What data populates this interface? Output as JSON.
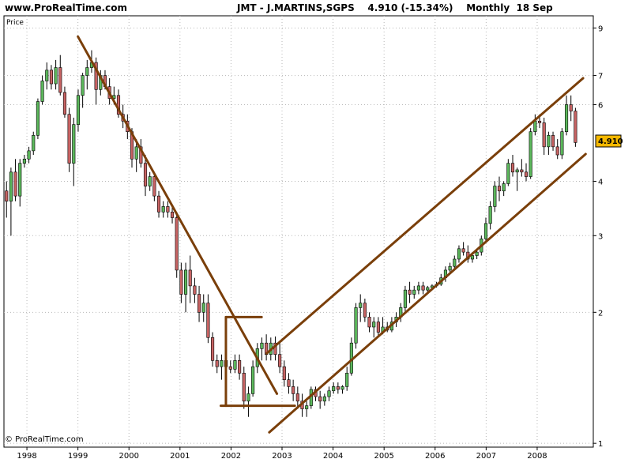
{
  "header": {
    "site": "www.ProRealTime.com",
    "title": "JMT - J.MARTINS,SGPS    4.910 (-15.34%)    Monthly  18 Sep"
  },
  "copyright": "© ProRealTime.com",
  "chart_data": {
    "type": "candlestick",
    "price_label": "Price",
    "last_price_badge": "4.910",
    "scale": "log",
    "ylim": [
      0.98,
      9.6
    ],
    "y_ticks": [
      {
        "value": 1,
        "label": "1"
      },
      {
        "value": 2,
        "label": "2"
      },
      {
        "value": 3,
        "label": "3"
      },
      {
        "value": 4,
        "label": "4"
      },
      {
        "value": 6,
        "label": "6"
      },
      {
        "value": 7,
        "label": "7"
      },
      {
        "value": 9,
        "label": "9"
      }
    ],
    "x_ticks": [
      "1998",
      "1999",
      "2000",
      "2001",
      "2002",
      "2003",
      "2004",
      "2005",
      "2006",
      "2007",
      "2008"
    ],
    "x_start_year": 1997.55,
    "x_end_year": 2009.1,
    "grid": true,
    "colors": {
      "up": "#5cb85c",
      "down": "#c86464",
      "trend": "#7a3f0a",
      "badge": "#f5b800"
    },
    "candles": [
      [
        3.8,
        4.0,
        3.3,
        3.6
      ],
      [
        3.6,
        4.3,
        3.0,
        4.2
      ],
      [
        4.2,
        4.5,
        3.6,
        3.7
      ],
      [
        3.7,
        4.5,
        3.5,
        4.4
      ],
      [
        4.4,
        4.6,
        4.3,
        4.5
      ],
      [
        4.5,
        4.8,
        4.4,
        4.7
      ],
      [
        4.7,
        5.2,
        4.6,
        5.1
      ],
      [
        5.1,
        6.2,
        5.0,
        6.1
      ],
      [
        6.1,
        7.0,
        6.0,
        6.8
      ],
      [
        6.8,
        7.5,
        6.5,
        7.2
      ],
      [
        7.2,
        7.4,
        6.5,
        6.7
      ],
      [
        6.7,
        7.6,
        6.5,
        7.3
      ],
      [
        7.3,
        7.8,
        6.3,
        6.4
      ],
      [
        6.4,
        6.6,
        5.6,
        5.7
      ],
      [
        5.7,
        5.9,
        4.2,
        4.4
      ],
      [
        4.4,
        5.6,
        3.9,
        5.4
      ],
      [
        5.4,
        6.5,
        5.2,
        6.3
      ],
      [
        6.3,
        7.1,
        5.9,
        7.0
      ],
      [
        7.0,
        7.6,
        6.5,
        7.3
      ],
      [
        7.3,
        8.0,
        7.1,
        7.5
      ],
      [
        7.5,
        7.7,
        6.0,
        6.5
      ],
      [
        6.5,
        7.2,
        6.3,
        7.0
      ],
      [
        7.0,
        7.2,
        6.5,
        6.6
      ],
      [
        6.6,
        6.9,
        6.0,
        6.2
      ],
      [
        6.2,
        6.6,
        6.0,
        6.3
      ],
      [
        6.3,
        6.5,
        5.6,
        5.7
      ],
      [
        5.7,
        6.0,
        5.3,
        5.5
      ],
      [
        5.5,
        5.7,
        5.0,
        5.2
      ],
      [
        5.2,
        5.3,
        4.3,
        4.5
      ],
      [
        4.5,
        5.0,
        4.2,
        4.8
      ],
      [
        4.8,
        5.0,
        4.3,
        4.4
      ],
      [
        4.4,
        4.6,
        3.7,
        3.9
      ],
      [
        3.9,
        4.2,
        3.8,
        4.1
      ],
      [
        4.1,
        4.2,
        3.6,
        3.7
      ],
      [
        3.7,
        3.8,
        3.3,
        3.4
      ],
      [
        3.4,
        3.6,
        3.3,
        3.5
      ],
      [
        3.5,
        3.6,
        3.3,
        3.4
      ],
      [
        3.4,
        3.5,
        3.2,
        3.3
      ],
      [
        3.3,
        3.4,
        2.4,
        2.5
      ],
      [
        2.5,
        2.6,
        2.1,
        2.2
      ],
      [
        2.2,
        2.6,
        2.0,
        2.5
      ],
      [
        2.5,
        2.7,
        2.1,
        2.3
      ],
      [
        2.3,
        2.4,
        2.1,
        2.2
      ],
      [
        2.2,
        2.3,
        1.9,
        2.0
      ],
      [
        2.0,
        2.2,
        1.9,
        2.1
      ],
      [
        2.1,
        2.2,
        1.7,
        1.75
      ],
      [
        1.75,
        1.8,
        1.5,
        1.55
      ],
      [
        1.55,
        1.6,
        1.45,
        1.5
      ],
      [
        1.5,
        1.6,
        1.4,
        1.55
      ],
      [
        1.55,
        1.6,
        1.45,
        1.5
      ],
      [
        1.5,
        1.55,
        1.45,
        1.48
      ],
      [
        1.48,
        1.6,
        1.45,
        1.55
      ],
      [
        1.55,
        1.6,
        1.4,
        1.45
      ],
      [
        1.45,
        1.5,
        1.2,
        1.25
      ],
      [
        1.25,
        1.35,
        1.15,
        1.3
      ],
      [
        1.3,
        1.55,
        1.28,
        1.5
      ],
      [
        1.5,
        1.7,
        1.45,
        1.65
      ],
      [
        1.65,
        1.75,
        1.55,
        1.7
      ],
      [
        1.7,
        1.78,
        1.55,
        1.6
      ],
      [
        1.6,
        1.75,
        1.55,
        1.7
      ],
      [
        1.7,
        1.76,
        1.55,
        1.6
      ],
      [
        1.6,
        1.7,
        1.45,
        1.5
      ],
      [
        1.5,
        1.55,
        1.35,
        1.4
      ],
      [
        1.4,
        1.45,
        1.3,
        1.35
      ],
      [
        1.35,
        1.4,
        1.25,
        1.3
      ],
      [
        1.3,
        1.35,
        1.2,
        1.25
      ],
      [
        1.25,
        1.3,
        1.15,
        1.2
      ],
      [
        1.2,
        1.25,
        1.15,
        1.22
      ],
      [
        1.22,
        1.35,
        1.2,
        1.33
      ],
      [
        1.33,
        1.35,
        1.25,
        1.28
      ],
      [
        1.28,
        1.32,
        1.2,
        1.25
      ],
      [
        1.25,
        1.3,
        1.22,
        1.28
      ],
      [
        1.28,
        1.35,
        1.25,
        1.32
      ],
      [
        1.32,
        1.38,
        1.3,
        1.35
      ],
      [
        1.35,
        1.38,
        1.3,
        1.33
      ],
      [
        1.33,
        1.36,
        1.3,
        1.35
      ],
      [
        1.35,
        1.5,
        1.32,
        1.45
      ],
      [
        1.45,
        1.75,
        1.43,
        1.7
      ],
      [
        1.7,
        2.1,
        1.65,
        2.05
      ],
      [
        2.05,
        2.2,
        1.9,
        2.1
      ],
      [
        2.1,
        2.15,
        1.9,
        1.95
      ],
      [
        1.95,
        2.0,
        1.8,
        1.85
      ],
      [
        1.85,
        1.95,
        1.75,
        1.9
      ],
      [
        1.9,
        1.95,
        1.75,
        1.8
      ],
      [
        1.8,
        1.95,
        1.78,
        1.85
      ],
      [
        1.85,
        1.9,
        1.8,
        1.82
      ],
      [
        1.82,
        1.95,
        1.8,
        1.9
      ],
      [
        1.9,
        2.0,
        1.85,
        1.95
      ],
      [
        1.95,
        2.1,
        1.9,
        2.05
      ],
      [
        2.05,
        2.3,
        2.0,
        2.25
      ],
      [
        2.25,
        2.35,
        2.1,
        2.2
      ],
      [
        2.2,
        2.3,
        2.15,
        2.25
      ],
      [
        2.25,
        2.35,
        2.2,
        2.3
      ],
      [
        2.3,
        2.35,
        2.2,
        2.25
      ],
      [
        2.25,
        2.3,
        2.2,
        2.28
      ],
      [
        2.28,
        2.32,
        2.25,
        2.3
      ],
      [
        2.3,
        2.35,
        2.28,
        2.32
      ],
      [
        2.32,
        2.45,
        2.3,
        2.4
      ],
      [
        2.4,
        2.55,
        2.35,
        2.5
      ],
      [
        2.5,
        2.6,
        2.45,
        2.55
      ],
      [
        2.55,
        2.7,
        2.5,
        2.65
      ],
      [
        2.65,
        2.85,
        2.6,
        2.8
      ],
      [
        2.8,
        2.9,
        2.7,
        2.75
      ],
      [
        2.75,
        2.85,
        2.6,
        2.65
      ],
      [
        2.65,
        2.75,
        2.6,
        2.7
      ],
      [
        2.7,
        2.8,
        2.65,
        2.75
      ],
      [
        2.75,
        3.0,
        2.7,
        2.95
      ],
      [
        2.95,
        3.3,
        2.9,
        3.2
      ],
      [
        3.2,
        3.6,
        3.1,
        3.5
      ],
      [
        3.5,
        4.0,
        3.4,
        3.9
      ],
      [
        3.9,
        4.1,
        3.6,
        3.8
      ],
      [
        3.8,
        4.0,
        3.7,
        3.95
      ],
      [
        3.95,
        4.5,
        3.9,
        4.4
      ],
      [
        4.4,
        4.6,
        4.1,
        4.2
      ],
      [
        4.2,
        4.3,
        3.8,
        4.25
      ],
      [
        4.25,
        4.5,
        4.1,
        4.2
      ],
      [
        4.2,
        4.4,
        4.0,
        4.1
      ],
      [
        4.1,
        5.3,
        4.05,
        5.2
      ],
      [
        5.2,
        5.7,
        5.1,
        5.5
      ],
      [
        5.5,
        5.7,
        5.3,
        5.45
      ],
      [
        5.45,
        5.6,
        4.6,
        4.8
      ],
      [
        4.8,
        5.2,
        4.6,
        5.1
      ],
      [
        5.1,
        5.2,
        4.7,
        4.8
      ],
      [
        4.8,
        5.0,
        4.5,
        4.6
      ],
      [
        4.6,
        5.3,
        4.5,
        5.2
      ],
      [
        5.2,
        6.3,
        5.1,
        6.0
      ],
      [
        6.0,
        6.3,
        5.5,
        5.8
      ],
      [
        5.8,
        5.9,
        4.8,
        4.91
      ]
    ],
    "trendlines": [
      {
        "name": "downtrend",
        "from": [
          1999.0,
          8.6
        ],
        "to": [
          2002.9,
          1.3
        ]
      },
      {
        "name": "base-top",
        "from": [
          2001.9,
          1.95
        ],
        "to": [
          2002.6,
          1.95
        ]
      },
      {
        "name": "base-bottom",
        "from": [
          2001.8,
          1.22
        ],
        "to": [
          2003.25,
          1.22
        ]
      },
      {
        "name": "base-left",
        "from": [
          2001.9,
          1.95
        ],
        "to": [
          2001.9,
          1.22
        ]
      },
      {
        "name": "channel-upper",
        "from": [
          2002.7,
          1.61
        ],
        "to": [
          2008.9,
          6.9
        ]
      },
      {
        "name": "channel-lower",
        "from": [
          2002.75,
          1.06
        ],
        "to": [
          2008.95,
          4.62
        ]
      }
    ]
  }
}
